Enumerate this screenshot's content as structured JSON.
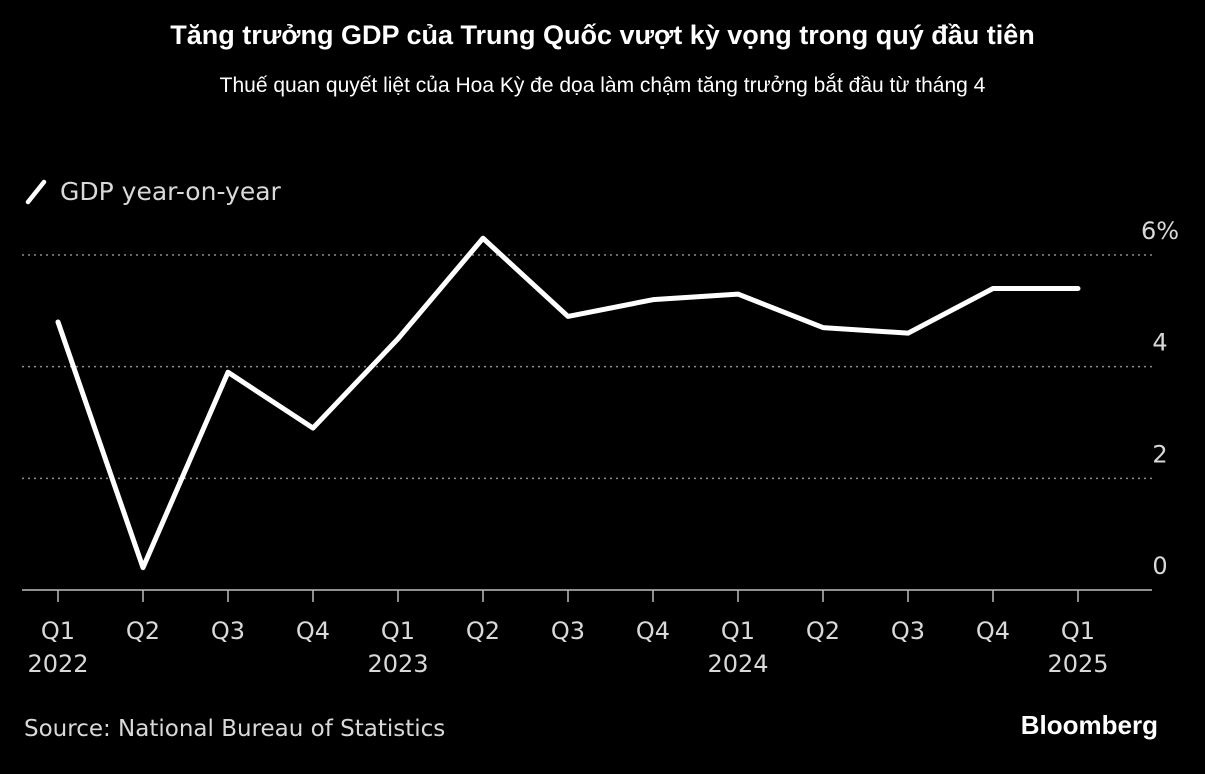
{
  "header": {
    "title": "Tăng trưởng GDP của Trung Quốc vượt kỳ vọng trong quý đầu tiên",
    "subtitle": "Thuế quan quyết liệt của Hoa Kỳ đe dọa làm chậm tăng trưởng bắt đầu từ tháng 4"
  },
  "footer": {
    "source": "Source: National Bureau of Statistics",
    "brand": "Bloomberg"
  },
  "colors": {
    "background": "#000000",
    "line": "#ffffff",
    "grid": "#8c8c8c",
    "text": "#d9d9d9"
  },
  "chart_data": {
    "type": "line",
    "title": "Tăng trưởng GDP của Trung Quốc vượt kỳ vọng trong quý đầu tiên",
    "subtitle": "Thuế quan quyết liệt của Hoa Kỳ đe dọa làm chậm tăng trưởng bắt đầu từ tháng 4",
    "xlabel": "",
    "ylabel": "",
    "ylim": [
      0,
      6
    ],
    "y_ticks": [
      0,
      2,
      4,
      6
    ],
    "y_tick_labels": [
      "0",
      "2",
      "4",
      "6%"
    ],
    "y_axis_side": "right",
    "grid": true,
    "legend_position": "top-left",
    "categories": [
      "Q1 2022",
      "Q2 2022",
      "Q3 2022",
      "Q4 2022",
      "Q1 2023",
      "Q2 2023",
      "Q3 2023",
      "Q4 2023",
      "Q1 2024",
      "Q2 2024",
      "Q3 2024",
      "Q4 2024",
      "Q1 2025"
    ],
    "x_tick_labels": [
      {
        "quarter": "Q1",
        "year": "2022"
      },
      {
        "quarter": "Q2",
        "year": ""
      },
      {
        "quarter": "Q3",
        "year": ""
      },
      {
        "quarter": "Q4",
        "year": ""
      },
      {
        "quarter": "Q1",
        "year": "2023"
      },
      {
        "quarter": "Q2",
        "year": ""
      },
      {
        "quarter": "Q3",
        "year": ""
      },
      {
        "quarter": "Q4",
        "year": ""
      },
      {
        "quarter": "Q1",
        "year": "2024"
      },
      {
        "quarter": "Q2",
        "year": ""
      },
      {
        "quarter": "Q3",
        "year": ""
      },
      {
        "quarter": "Q4",
        "year": ""
      },
      {
        "quarter": "Q1",
        "year": "2025"
      }
    ],
    "series": [
      {
        "name": "GDP year-on-year",
        "values": [
          4.8,
          0.4,
          3.9,
          2.9,
          4.5,
          6.3,
          4.9,
          5.2,
          5.3,
          4.7,
          4.6,
          5.4,
          5.4
        ]
      }
    ]
  }
}
